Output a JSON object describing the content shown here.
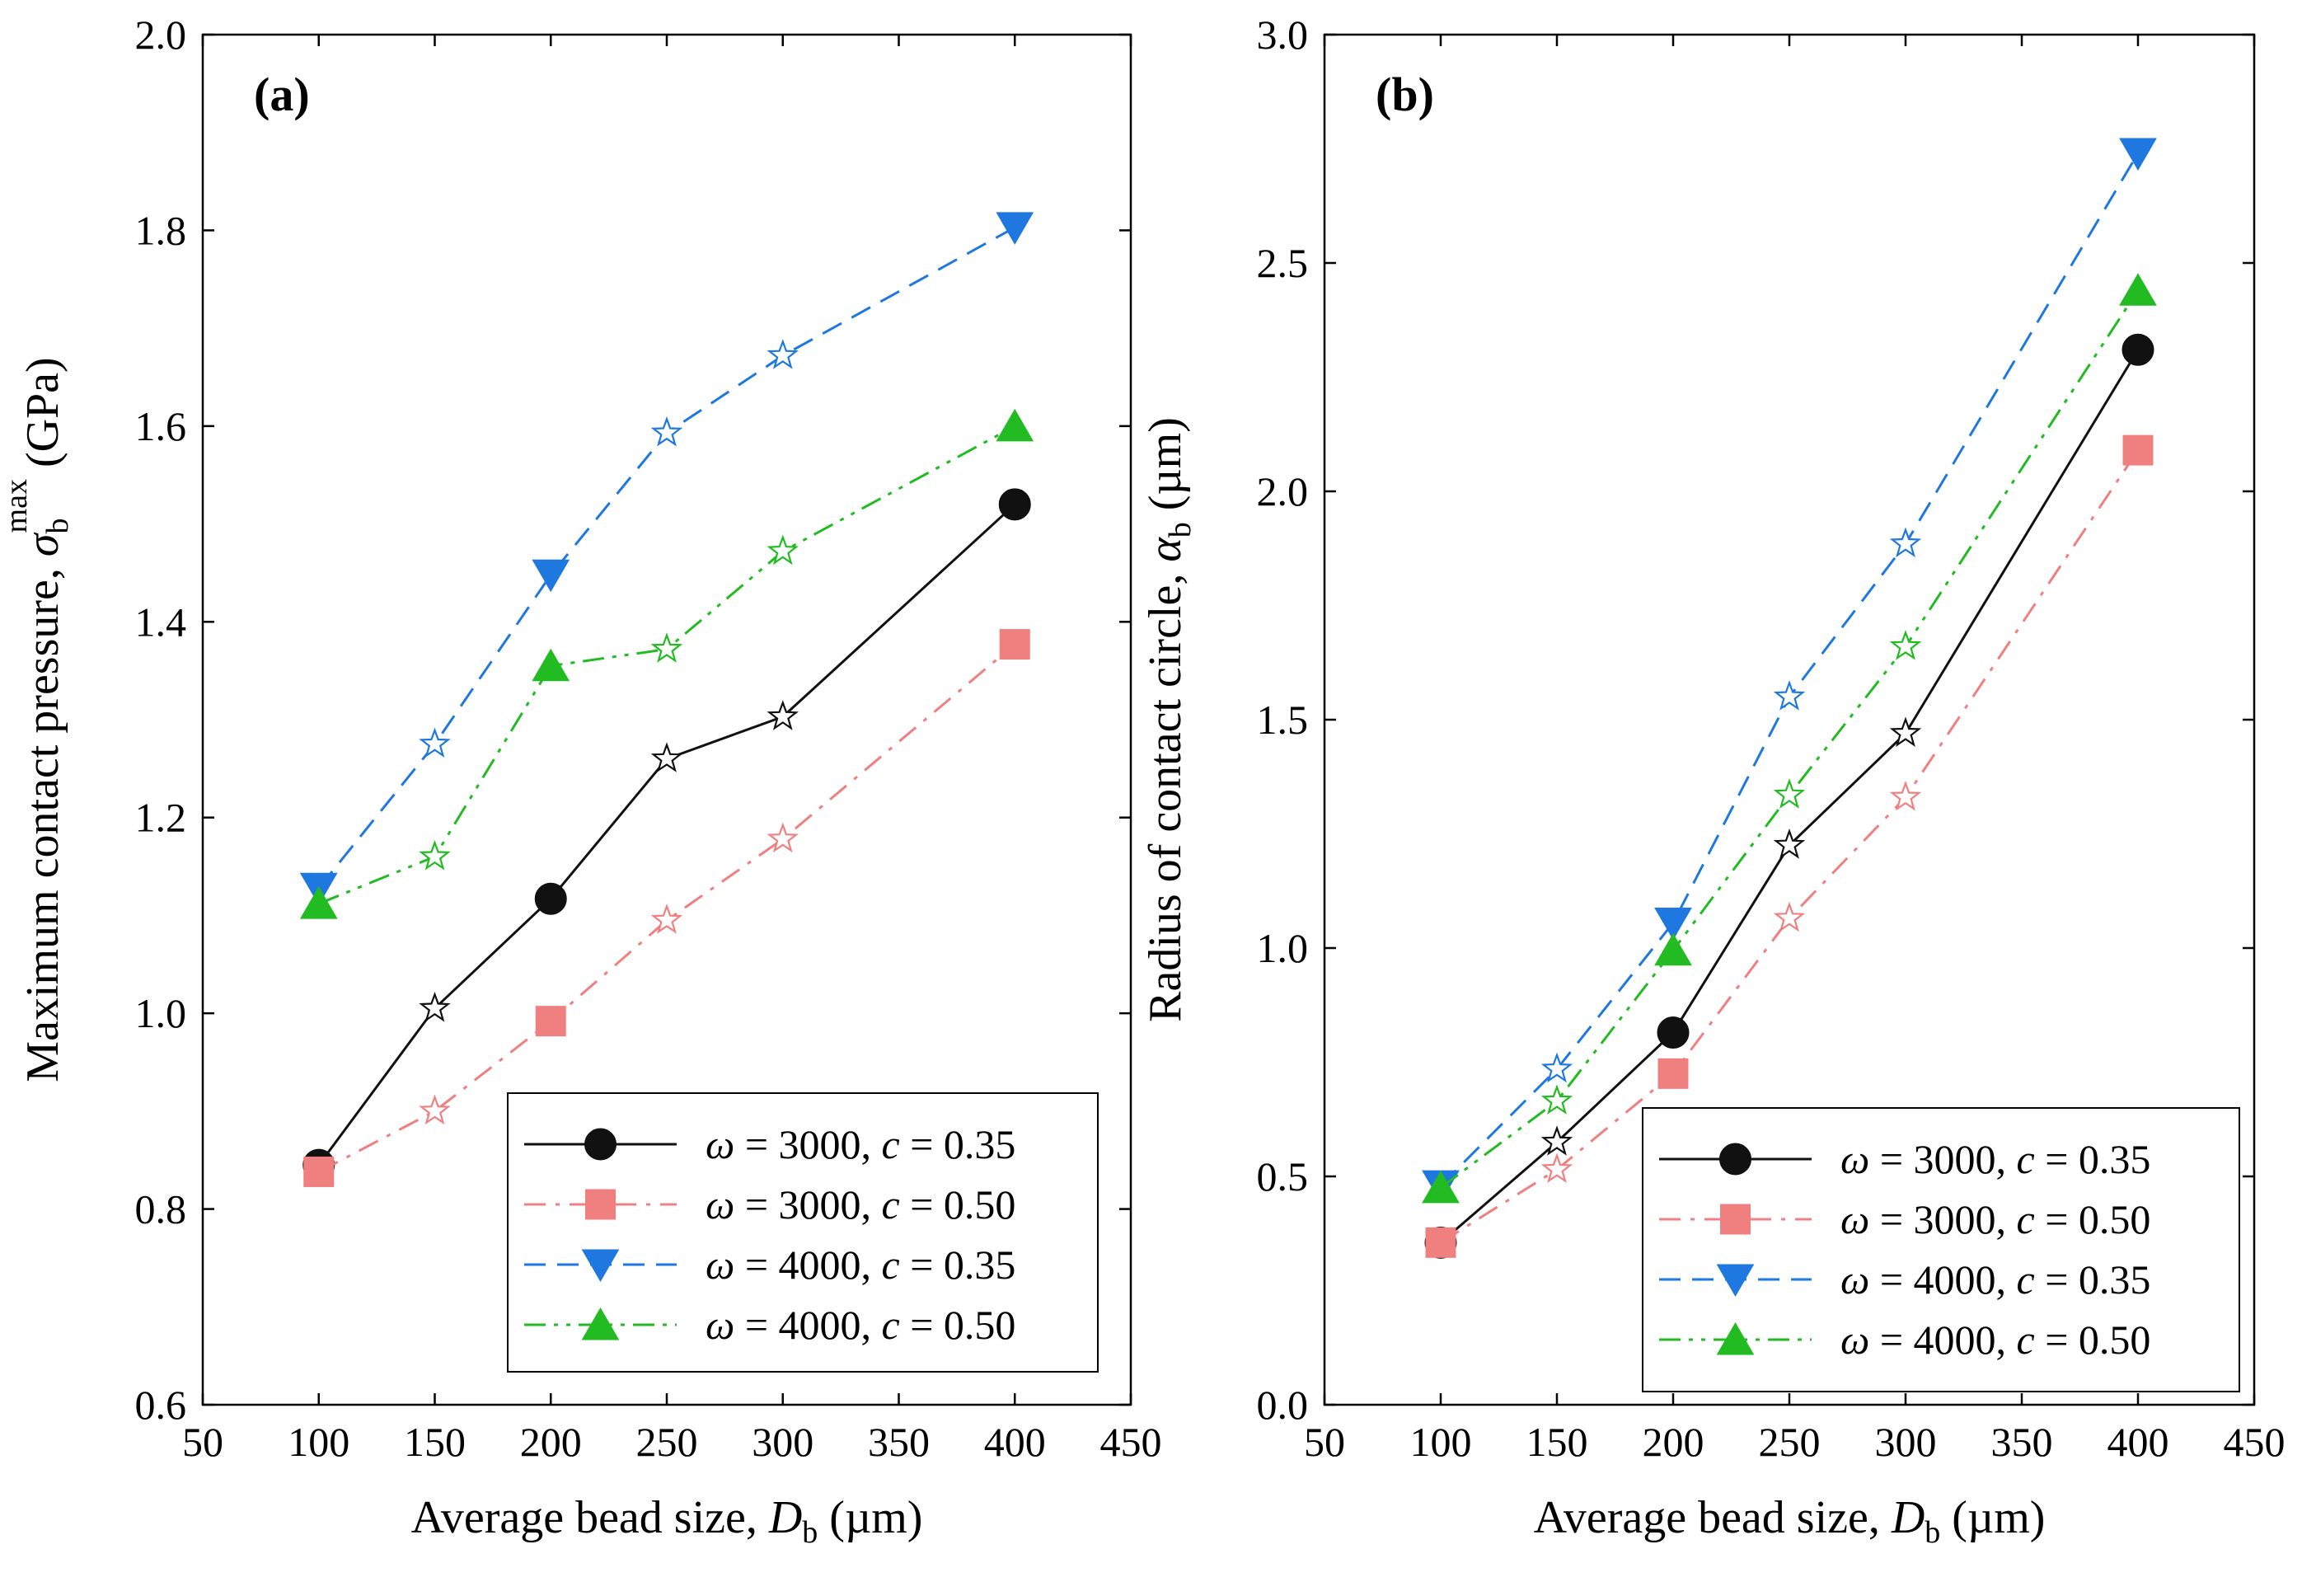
{
  "chart_data": [
    {
      "type": "line",
      "panel_label": "(a)",
      "xlabel": {
        "prefix": "Average bead size, ",
        "symbol": "D",
        "sub": "b",
        "unit": " (µm)"
      },
      "ylabel": {
        "prefix": "Maximum contact pressure, ",
        "symbol": "σ",
        "sub": "b",
        "sup": "max",
        "unit": " (GPa)"
      },
      "xlim": [
        50,
        450
      ],
      "ylim": [
        0.6,
        2.0
      ],
      "xticks": [
        50,
        100,
        150,
        200,
        250,
        300,
        350,
        400,
        450
      ],
      "xtick_labels": [
        "50",
        "100",
        "150",
        "200",
        "250",
        "300",
        "350",
        "400",
        "450"
      ],
      "yticks": [
        0.6,
        0.8,
        1.0,
        1.2,
        1.4,
        1.6,
        1.8,
        2.0
      ],
      "ytick_labels": [
        "0.6",
        "0.8",
        "1.0",
        "1.2",
        "1.4",
        "1.6",
        "1.8",
        "2.0"
      ],
      "x": [
        100,
        150,
        200,
        250,
        300,
        400
      ],
      "legend_position": "bottom-right",
      "series": [
        {
          "name": "ω = 3000, c = 0.35",
          "omega": "3000",
          "c": "0.35",
          "color": "#111111",
          "dash": "none",
          "marker": "circle",
          "values": [
            0.845,
            1.005,
            1.117,
            1.26,
            1.303,
            1.52
          ]
        },
        {
          "name": "ω = 3000, c = 0.50",
          "omega": "3000",
          "c": "0.50",
          "color": "#f08080",
          "dash": "dashdot",
          "marker": "square",
          "values": [
            0.838,
            0.9,
            0.992,
            1.095,
            1.178,
            1.377
          ]
        },
        {
          "name": "ω = 4000, c = 0.35",
          "omega": "4000",
          "c": "0.35",
          "color": "#1e78e0",
          "dash": "dashed",
          "marker": "triangle-down",
          "values": [
            1.128,
            1.275,
            1.448,
            1.593,
            1.672,
            1.803
          ]
        },
        {
          "name": "ω = 4000, c = 0.50",
          "omega": "4000",
          "c": "0.50",
          "color": "#22bb22",
          "dash": "dashdotdot",
          "marker": "triangle-up",
          "values": [
            1.112,
            1.16,
            1.355,
            1.372,
            1.472,
            1.6
          ]
        }
      ]
    },
    {
      "type": "line",
      "panel_label": "(b)",
      "xlabel": {
        "prefix": "Average bead size, ",
        "symbol": "D",
        "sub": "b",
        "unit": " (µm)"
      },
      "ylabel": {
        "prefix": "Radius of contact circle, ",
        "symbol": "α",
        "sub": "b",
        "sup": "",
        "unit": " (µm)"
      },
      "xlim": [
        50,
        450
      ],
      "ylim": [
        0.0,
        3.0
      ],
      "xticks": [
        50,
        100,
        150,
        200,
        250,
        300,
        350,
        400,
        450
      ],
      "xtick_labels": [
        "50",
        "100",
        "150",
        "200",
        "250",
        "300",
        "350",
        "400",
        "450"
      ],
      "yticks": [
        0.0,
        0.5,
        1.0,
        1.5,
        2.0,
        2.5,
        3.0
      ],
      "ytick_labels": [
        "0.0",
        "0.5",
        "1.0",
        "1.5",
        "2.0",
        "2.5",
        "3.0"
      ],
      "x": [
        100,
        150,
        200,
        250,
        300,
        400
      ],
      "legend_position": "bottom-right",
      "series": [
        {
          "name": "ω = 3000, c = 0.35",
          "omega": "3000",
          "c": "0.35",
          "color": "#111111",
          "dash": "none",
          "marker": "circle",
          "values": [
            0.355,
            0.575,
            0.815,
            1.225,
            1.47,
            2.31
          ]
        },
        {
          "name": "ω = 3000, c = 0.50",
          "omega": "3000",
          "c": "0.50",
          "color": "#f08080",
          "dash": "dashdot",
          "marker": "square",
          "values": [
            0.355,
            0.515,
            0.725,
            1.065,
            1.33,
            2.09
          ]
        },
        {
          "name": "ω = 4000, c = 0.35",
          "omega": "4000",
          "c": "0.35",
          "color": "#1e78e0",
          "dash": "dashed",
          "marker": "triangle-down",
          "values": [
            0.48,
            0.735,
            1.055,
            1.55,
            1.885,
            2.74
          ]
        },
        {
          "name": "ω = 4000, c = 0.50",
          "omega": "4000",
          "c": "0.50",
          "color": "#22bb22",
          "dash": "dashdotdot",
          "marker": "triangle-up",
          "values": [
            0.475,
            0.665,
            0.995,
            1.335,
            1.66,
            2.44
          ]
        }
      ]
    }
  ]
}
